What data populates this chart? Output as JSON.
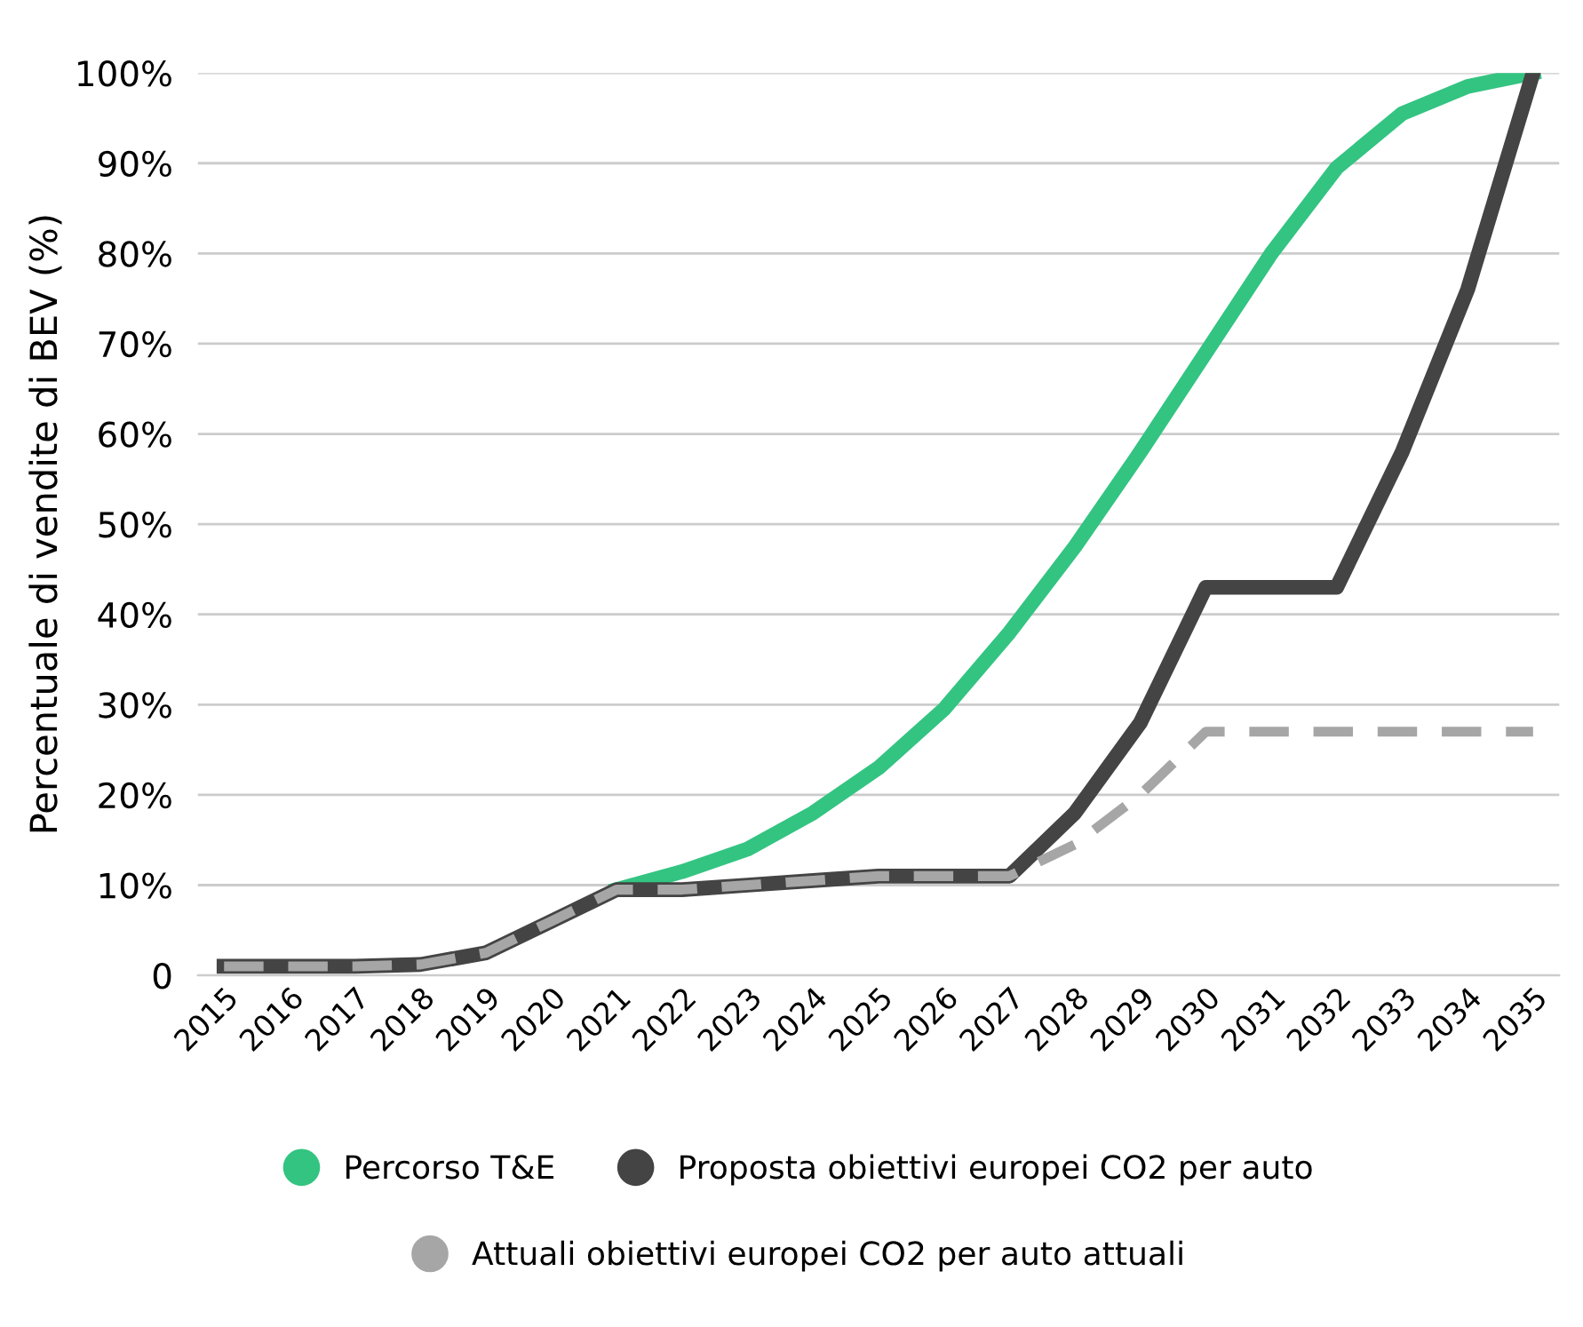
{
  "chart_data": {
    "type": "line",
    "ylabel": "Percentuale di vendite di BEV (%)",
    "x": [
      2015,
      2016,
      2017,
      2018,
      2019,
      2020,
      2021,
      2022,
      2023,
      2024,
      2025,
      2026,
      2027,
      2028,
      2029,
      2030,
      2031,
      2032,
      2033,
      2034,
      2035
    ],
    "xlim": [
      2014.6,
      2035.4
    ],
    "xticks": [
      2015,
      2016,
      2017,
      2018,
      2019,
      2020,
      2021,
      2022,
      2023,
      2024,
      2025,
      2026,
      2027,
      2028,
      2029,
      2030,
      2031,
      2032,
      2033,
      2034,
      2035
    ],
    "ylim": [
      0,
      100
    ],
    "yticks": [
      {
        "value": 0,
        "label": "0"
      },
      {
        "value": 10,
        "label": "10%"
      },
      {
        "value": 20,
        "label": "20%"
      },
      {
        "value": 30,
        "label": "30%"
      },
      {
        "value": 40,
        "label": "40%"
      },
      {
        "value": 50,
        "label": "50%"
      },
      {
        "value": 60,
        "label": "60%"
      },
      {
        "value": 70,
        "label": "70%"
      },
      {
        "value": 80,
        "label": "80%"
      },
      {
        "value": 90,
        "label": "90%"
      },
      {
        "value": 100,
        "label": "100%"
      }
    ],
    "grid": "y",
    "legend": "bottom",
    "marker": "none",
    "series": [
      {
        "name": "Percorso T&E",
        "color": "#33c481",
        "line_style": "solid",
        "x": [
          2021,
          2022,
          2023,
          2024,
          2025,
          2026,
          2027,
          2028,
          2029,
          2030,
          2031,
          2032,
          2033,
          2034,
          2035
        ],
        "values": [
          9.5,
          11.5,
          14,
          18,
          23,
          29.5,
          38,
          47.5,
          58,
          69,
          80,
          89.5,
          95.5,
          98.5,
          100
        ]
      },
      {
        "name": "Proposta obiettivi europei CO2 per auto",
        "color": "#444444",
        "line_style": "solid",
        "values": [
          1,
          1,
          1,
          1.2,
          2.5,
          6,
          9.5,
          9.5,
          10,
          10.5,
          11,
          11,
          11,
          18,
          28,
          43,
          43,
          43,
          58,
          76,
          100
        ]
      },
      {
        "name": "Attuali obiettivi europei CO2 per auto attuali",
        "color": "#a6a6a6",
        "line_style": "dashed",
        "values": [
          1,
          1,
          1,
          1.2,
          2.5,
          6,
          9.5,
          9.5,
          10,
          10.5,
          11,
          11,
          11,
          14.5,
          20,
          27,
          27,
          27,
          27,
          27,
          27
        ]
      }
    ]
  }
}
